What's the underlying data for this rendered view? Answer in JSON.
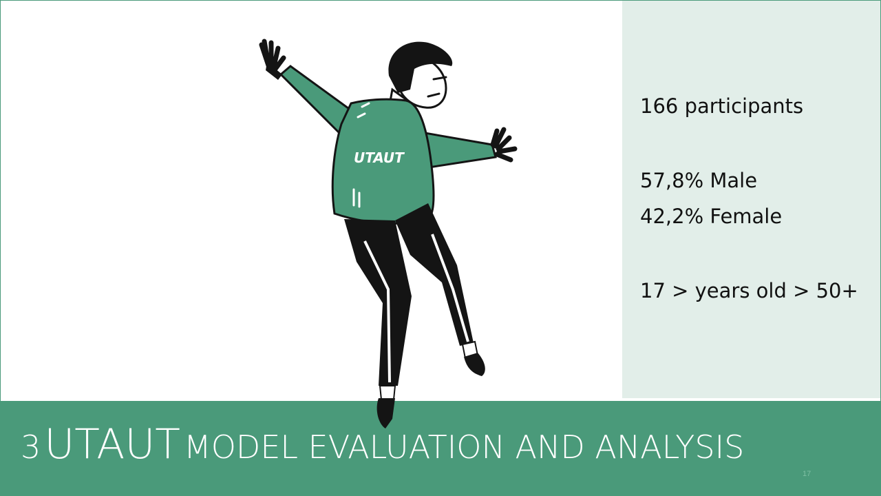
{
  "stats": {
    "participants": "166 participants",
    "male": "57,8% Male",
    "female": "42,2% Female",
    "age": "17 > years old > 50+"
  },
  "footer": {
    "number": "3",
    "title_main": "UTAUT",
    "title_rest": "MODEL EVALUATION AND ANALYSIS",
    "page_number": "17"
  },
  "illustration": {
    "shirt_text": "UTAUT"
  },
  "colors": {
    "accent": "#4a9a7a",
    "panel": "#e2eee9",
    "pants": "#141414"
  }
}
